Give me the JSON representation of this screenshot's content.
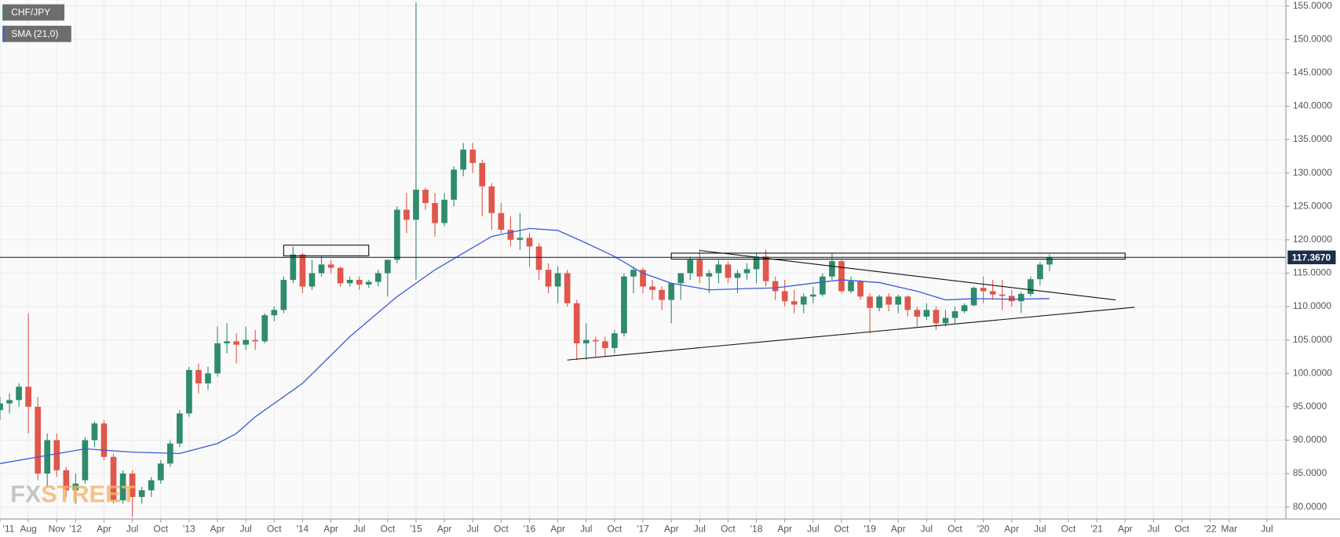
{
  "chart_data": {
    "type": "candlestick",
    "legend": [
      "CHF/JPY",
      "SMA (21,0)"
    ],
    "watermark": [
      "FX",
      "STREET"
    ],
    "up_color": "#2f8b6b",
    "down_color": "#e0574b",
    "grid": true,
    "xlim": [
      "2011-05",
      "2022-09"
    ],
    "ylim": [
      78.2,
      155.9
    ],
    "yticks": [
      {
        "value": 80,
        "label": "80.0000"
      },
      {
        "value": 85,
        "label": "85.0000"
      },
      {
        "value": 90,
        "label": "90.0000"
      },
      {
        "value": 95,
        "label": "95.0000"
      },
      {
        "value": 100,
        "label": "100.0000"
      },
      {
        "value": 105,
        "label": "105.0000"
      },
      {
        "value": 110,
        "label": "110.0000"
      },
      {
        "value": 115,
        "label": "115.0000"
      },
      {
        "value": 120,
        "label": "120.0000"
      },
      {
        "value": 125,
        "label": "125.0000"
      },
      {
        "value": 130,
        "label": "130.0000"
      },
      {
        "value": 135,
        "label": "135.0000"
      },
      {
        "value": 140,
        "label": "140.0000"
      },
      {
        "value": 145,
        "label": "145.0000"
      },
      {
        "value": 150,
        "label": "150.0000"
      },
      {
        "value": 155,
        "label": "155.0000"
      }
    ],
    "xticks": [
      {
        "value": "2011-05",
        "label": "'11"
      },
      {
        "value": "2011-08",
        "label": "Aug"
      },
      {
        "value": "2011-11",
        "label": "Nov"
      },
      {
        "value": "2012-01",
        "label": "'12"
      },
      {
        "value": "2012-04",
        "label": "Apr"
      },
      {
        "value": "2012-07",
        "label": "Jul"
      },
      {
        "value": "2012-10",
        "label": "Oct"
      },
      {
        "value": "2013-01",
        "label": "'13"
      },
      {
        "value": "2013-04",
        "label": "Apr"
      },
      {
        "value": "2013-07",
        "label": "Jul"
      },
      {
        "value": "2013-10",
        "label": "Oct"
      },
      {
        "value": "2014-01",
        "label": "'14"
      },
      {
        "value": "2014-04",
        "label": "Apr"
      },
      {
        "value": "2014-07",
        "label": "Jul"
      },
      {
        "value": "2014-10",
        "label": "Oct"
      },
      {
        "value": "2015-01",
        "label": "'15"
      },
      {
        "value": "2015-04",
        "label": "Apr"
      },
      {
        "value": "2015-07",
        "label": "Jul"
      },
      {
        "value": "2015-10",
        "label": "Oct"
      },
      {
        "value": "2016-01",
        "label": "'16"
      },
      {
        "value": "2016-04",
        "label": "Apr"
      },
      {
        "value": "2016-07",
        "label": "Jul"
      },
      {
        "value": "2016-10",
        "label": "Oct"
      },
      {
        "value": "2017-01",
        "label": "'17"
      },
      {
        "value": "2017-04",
        "label": "Apr"
      },
      {
        "value": "2017-07",
        "label": "Jul"
      },
      {
        "value": "2017-10",
        "label": "Oct"
      },
      {
        "value": "2018-01",
        "label": "'18"
      },
      {
        "value": "2018-04",
        "label": "Apr"
      },
      {
        "value": "2018-07",
        "label": "Jul"
      },
      {
        "value": "2018-10",
        "label": "Oct"
      },
      {
        "value": "2019-01",
        "label": "'19"
      },
      {
        "value": "2019-04",
        "label": "Apr"
      },
      {
        "value": "2019-07",
        "label": "Jul"
      },
      {
        "value": "2019-10",
        "label": "Oct"
      },
      {
        "value": "2020-01",
        "label": "'20"
      },
      {
        "value": "2020-04",
        "label": "Apr"
      },
      {
        "value": "2020-07",
        "label": "Jul"
      },
      {
        "value": "2020-10",
        "label": "Oct"
      },
      {
        "value": "2021-01",
        "label": "'21"
      },
      {
        "value": "2021-04",
        "label": "Apr"
      },
      {
        "value": "2021-07",
        "label": "Jul"
      },
      {
        "value": "2021-10",
        "label": "Oct"
      },
      {
        "value": "2022-01",
        "label": "'22"
      },
      {
        "value": "2022-03",
        "label": "Mar"
      },
      {
        "value": "2022-07",
        "label": "Jul"
      }
    ],
    "last_price": {
      "value": 117.367,
      "label": "117.3670"
    },
    "series": [
      {
        "name": "CHF/JPY",
        "color": "#2f8b6b",
        "x": [
          "2011-05",
          "2011-06",
          "2011-07",
          "2011-08",
          "2011-09",
          "2011-10",
          "2011-11",
          "2011-12",
          "2012-01",
          "2012-02",
          "2012-03",
          "2012-04",
          "2012-05",
          "2012-06",
          "2012-07",
          "2012-08",
          "2012-09",
          "2012-10",
          "2012-11",
          "2012-12",
          "2013-01",
          "2013-02",
          "2013-03",
          "2013-04",
          "2013-05",
          "2013-06",
          "2013-07",
          "2013-08",
          "2013-09",
          "2013-10",
          "2013-11",
          "2013-12",
          "2014-01",
          "2014-02",
          "2014-03",
          "2014-04",
          "2014-05",
          "2014-06",
          "2014-07",
          "2014-08",
          "2014-09",
          "2014-10",
          "2014-11",
          "2014-12",
          "2015-01",
          "2015-02",
          "2015-03",
          "2015-04",
          "2015-05",
          "2015-06",
          "2015-07",
          "2015-08",
          "2015-09",
          "2015-10",
          "2015-11",
          "2015-12",
          "2016-01",
          "2016-02",
          "2016-03",
          "2016-04",
          "2016-05",
          "2016-06",
          "2016-07",
          "2016-08",
          "2016-09",
          "2016-10",
          "2016-11",
          "2016-12",
          "2017-01",
          "2017-02",
          "2017-03",
          "2017-04",
          "2017-05",
          "2017-06",
          "2017-07",
          "2017-08",
          "2017-09",
          "2017-10",
          "2017-11",
          "2017-12",
          "2018-01",
          "2018-02",
          "2018-03",
          "2018-04",
          "2018-05",
          "2018-06",
          "2018-07",
          "2018-08",
          "2018-09",
          "2018-10",
          "2018-11",
          "2018-12",
          "2019-01",
          "2019-02",
          "2019-03",
          "2019-04",
          "2019-05",
          "2019-06",
          "2019-07",
          "2019-08",
          "2019-09",
          "2019-10",
          "2019-11",
          "2019-12",
          "2020-01",
          "2020-02",
          "2020-03",
          "2020-04",
          "2020-05",
          "2020-06",
          "2020-07",
          "2020-08"
        ],
        "ohlc": [
          [
            94.5,
            96.5,
            93,
            95.5
          ],
          [
            95.5,
            97,
            94,
            96
          ],
          [
            96,
            98.5,
            95,
            98
          ],
          [
            98,
            109,
            91,
            95
          ],
          [
            95,
            96.5,
            84,
            85
          ],
          [
            85,
            91,
            83,
            90
          ],
          [
            90,
            91,
            84.5,
            85.5
          ],
          [
            85.5,
            86,
            81.5,
            82.5
          ],
          [
            82.5,
            85,
            80.5,
            83.5
          ],
          [
            84,
            90.5,
            83.5,
            90
          ],
          [
            90,
            92.8,
            89,
            92.5
          ],
          [
            92.5,
            93,
            87,
            87.5
          ],
          [
            87.5,
            88,
            80.5,
            81
          ],
          [
            81,
            85.5,
            80.5,
            85
          ],
          [
            85,
            85.5,
            78.5,
            81.5
          ],
          [
            81.5,
            83,
            80.5,
            82.5
          ],
          [
            82.5,
            84.5,
            81.5,
            84
          ],
          [
            84,
            87,
            83.5,
            86.5
          ],
          [
            86.5,
            90,
            86,
            89.5
          ],
          [
            89.5,
            94.5,
            89,
            94
          ],
          [
            94,
            101,
            93.5,
            100.5
          ],
          [
            100.5,
            101.5,
            97,
            98.5
          ],
          [
            98.5,
            101,
            97.5,
            100
          ],
          [
            100,
            107,
            99.5,
            104.5
          ],
          [
            104.5,
            107.5,
            103,
            104.8
          ],
          [
            104.8,
            106,
            101.5,
            104.3
          ],
          [
            104.3,
            107,
            103.5,
            105
          ],
          [
            105,
            106.5,
            103.5,
            104.8
          ],
          [
            104.8,
            109,
            104.5,
            108.7
          ],
          [
            108.7,
            110,
            107.8,
            109.5
          ],
          [
            109.5,
            114.5,
            109,
            114
          ],
          [
            114,
            119,
            113.5,
            117.8
          ],
          [
            117.8,
            118,
            112,
            113
          ],
          [
            113,
            117,
            112.5,
            115
          ],
          [
            115,
            117.5,
            114.5,
            116.3
          ],
          [
            116.3,
            117,
            115,
            115.8
          ],
          [
            115.8,
            116,
            113,
            113.5
          ],
          [
            113.5,
            114.5,
            113,
            114
          ],
          [
            114,
            114.5,
            112.5,
            113.3
          ],
          [
            113.3,
            114,
            112.8,
            113.7
          ],
          [
            113.7,
            115.5,
            113,
            115
          ],
          [
            115,
            117,
            111.5,
            117
          ],
          [
            117,
            125,
            116.5,
            124.5
          ],
          [
            124.5,
            127,
            121,
            123
          ],
          [
            123,
            155.5,
            114,
            127.5
          ],
          [
            127.5,
            127.8,
            124.5,
            125.5
          ],
          [
            125.5,
            127,
            120.5,
            122.5
          ],
          [
            122.5,
            127,
            122,
            126
          ],
          [
            126,
            131,
            125,
            130.5
          ],
          [
            130.5,
            134.5,
            129.5,
            133.5
          ],
          [
            133.5,
            134.5,
            130,
            131.5
          ],
          [
            131.5,
            132,
            123.5,
            128
          ],
          [
            128,
            128.5,
            121.5,
            124
          ],
          [
            124,
            125.5,
            121,
            121.5
          ],
          [
            121.5,
            123.5,
            119,
            120
          ],
          [
            120,
            124,
            118.5,
            120.3
          ],
          [
            120.3,
            121,
            116,
            119
          ],
          [
            119,
            119.5,
            114,
            115.5
          ],
          [
            115.5,
            116.5,
            112,
            113
          ],
          [
            113,
            116,
            110.5,
            115
          ],
          [
            115,
            115.5,
            110,
            110.5
          ],
          [
            110.5,
            111,
            102,
            104.5
          ],
          [
            104.5,
            107.5,
            102,
            105
          ],
          [
            105,
            105.5,
            102.5,
            104.8
          ],
          [
            104.8,
            105.5,
            102.5,
            103.8
          ],
          [
            103.8,
            106.5,
            103,
            106
          ],
          [
            106,
            115,
            105.5,
            114.5
          ],
          [
            114.5,
            116,
            112,
            115.5
          ],
          [
            115.5,
            115.8,
            112,
            113
          ],
          [
            113,
            114,
            111,
            112.5
          ],
          [
            112.5,
            113,
            109.5,
            111
          ],
          [
            111,
            113.5,
            107.5,
            113.5
          ],
          [
            113.5,
            115,
            111,
            115
          ],
          [
            115,
            117.5,
            114,
            117
          ],
          [
            117,
            118.5,
            113.5,
            114.5
          ],
          [
            114.5,
            115.5,
            112,
            115
          ],
          [
            115,
            117,
            113.5,
            116.3
          ],
          [
            116.3,
            116.8,
            113.5,
            114.3
          ],
          [
            114.3,
            115.5,
            112,
            115
          ],
          [
            115,
            116.5,
            114,
            115.6
          ],
          [
            115.6,
            118,
            113.5,
            117.5
          ],
          [
            117.5,
            118.5,
            113,
            113.8
          ],
          [
            113.8,
            114.5,
            111,
            112.3
          ],
          [
            112.3,
            114,
            110,
            110.8
          ],
          [
            110.8,
            112.5,
            109,
            110.3
          ],
          [
            110.3,
            112,
            109,
            111.5
          ],
          [
            111.5,
            113,
            110.5,
            111.8
          ],
          [
            111.8,
            115,
            111.5,
            114.5
          ],
          [
            114.5,
            118,
            114,
            116.8
          ],
          [
            116.8,
            117,
            112,
            112.3
          ],
          [
            112.3,
            114.5,
            112,
            113.8
          ],
          [
            113.8,
            114,
            111,
            111.5
          ],
          [
            111.5,
            112,
            106,
            109.8
          ],
          [
            109.8,
            111.8,
            109.3,
            111.5
          ],
          [
            111.5,
            112,
            109.3,
            110.3
          ],
          [
            110.3,
            111.8,
            109,
            111.5
          ],
          [
            111.5,
            111.7,
            108.5,
            109.5
          ],
          [
            109.5,
            110,
            107,
            108.5
          ],
          [
            108.5,
            110.5,
            108,
            109.5
          ],
          [
            109.5,
            110,
            106.5,
            107.5
          ],
          [
            107.5,
            109.5,
            107,
            108.3
          ],
          [
            108.3,
            110,
            107.5,
            109.3
          ],
          [
            109.3,
            110.5,
            109,
            110.2
          ],
          [
            110.2,
            113,
            110,
            112.8
          ],
          [
            112.8,
            114.5,
            110.5,
            112.3
          ],
          [
            112.3,
            114,
            111,
            111.8
          ],
          [
            111.8,
            114,
            109.5,
            111.6
          ],
          [
            111.6,
            112.5,
            110,
            110.8
          ],
          [
            110.8,
            112.2,
            109,
            111.9
          ],
          [
            111.9,
            114.5,
            111.5,
            114.1
          ],
          [
            114.1,
            116.7,
            113.2,
            116.3
          ],
          [
            116.3,
            117.8,
            115.3,
            117.367
          ]
        ]
      },
      {
        "name": "SMA (21,0)",
        "color": "#3b5bdb",
        "line": true,
        "x": [
          "2011-05",
          "2012-02",
          "2012-07",
          "2012-12",
          "2013-04",
          "2013-06",
          "2013-08",
          "2014-01",
          "2014-06",
          "2014-11",
          "2015-03",
          "2015-06",
          "2015-09",
          "2016-01",
          "2016-04",
          "2016-07",
          "2016-10",
          "2017-01",
          "2017-04",
          "2017-08",
          "2017-12",
          "2018-03",
          "2018-07",
          "2018-10",
          "2019-02",
          "2019-06",
          "2019-09",
          "2019-12",
          "2020-04",
          "2020-08"
        ],
        "values": [
          86.5,
          88.7,
          88.2,
          88.0,
          89.5,
          91,
          93.5,
          98.5,
          105.5,
          111.5,
          115.5,
          118,
          120.5,
          121.7,
          121.4,
          119.5,
          117.5,
          115,
          113.5,
          112.5,
          112.7,
          112.8,
          113.5,
          114,
          113.6,
          112.3,
          111,
          111.2,
          111.1,
          111.2
        ]
      }
    ],
    "drawings": [
      {
        "type": "rect",
        "x": [
          "2013-11",
          "2014-08"
        ],
        "y": [
          117.6,
          119.2
        ]
      },
      {
        "type": "rect",
        "x": [
          "2017-04",
          "2021-04"
        ],
        "y": [
          117.1,
          118.0
        ]
      },
      {
        "type": "line",
        "x": [
          "2017-07",
          "2021-03"
        ],
        "y": [
          118.4,
          111.0
        ]
      },
      {
        "type": "line",
        "x": [
          "2016-05",
          "2021-05"
        ],
        "y": [
          102.0,
          109.9
        ]
      }
    ]
  }
}
